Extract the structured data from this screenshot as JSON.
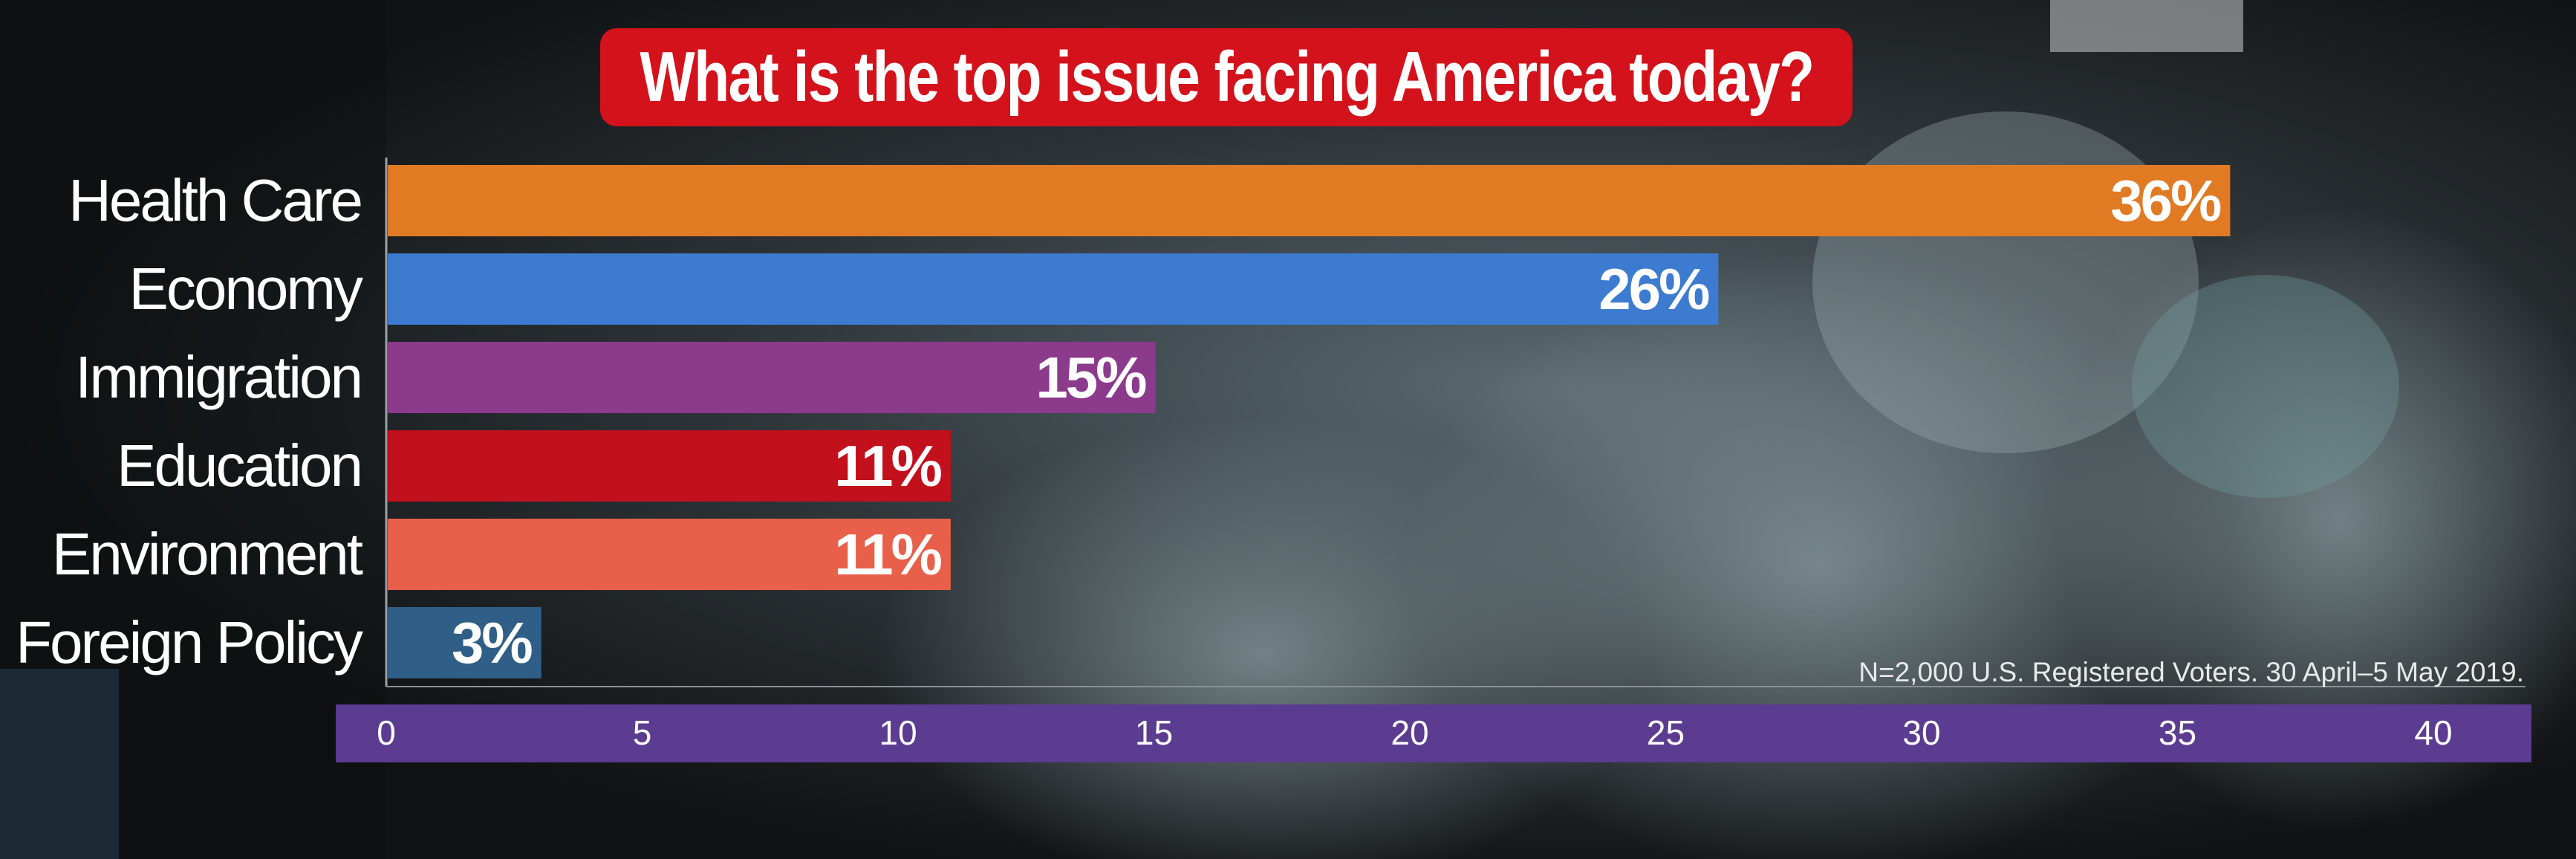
{
  "title": "What is the top issue facing America today?",
  "note": "N=2,000 U.S. Registered Voters. 30 April–5 May 2019.",
  "colors": {
    "title_bg": "#d3121c",
    "axis_band": "#5b3c90",
    "label_text": "#ffffff"
  },
  "chart_data": {
    "type": "bar",
    "orientation": "horizontal",
    "categories": [
      "Health Care",
      "Economy",
      "Immigration",
      "Education",
      "Environment",
      "Foreign Policy"
    ],
    "values": [
      36,
      26,
      15,
      11,
      11,
      3
    ],
    "value_labels": [
      "36%",
      "26%",
      "15%",
      "11%",
      "11%",
      "3%"
    ],
    "bar_colors": [
      "#e07b24",
      "#3c7bd0",
      "#8b3a8c",
      "#c2101c",
      "#e8604a",
      "#2f5f86"
    ],
    "xlim": [
      0,
      40
    ],
    "x_ticks": [
      0,
      5,
      10,
      15,
      20,
      25,
      30,
      35,
      40
    ],
    "grid": false,
    "legend": "none"
  }
}
